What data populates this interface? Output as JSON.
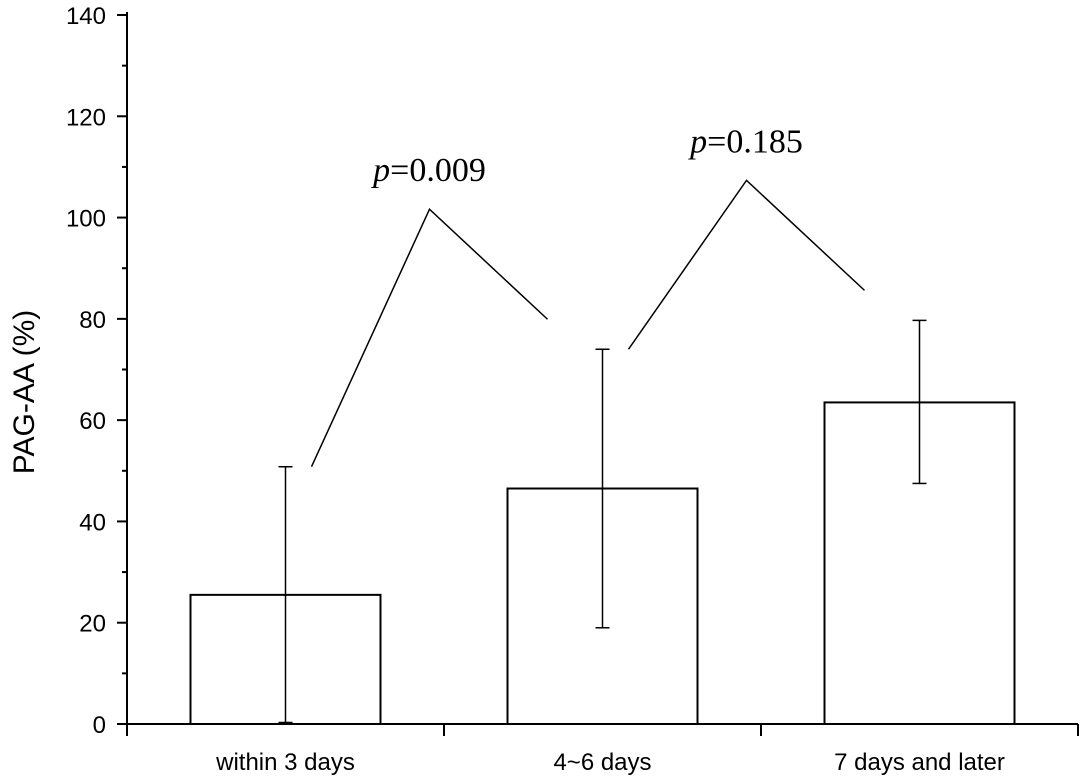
{
  "chart_data": {
    "type": "bar",
    "categories": [
      "within 3 days",
      "4~6 days",
      "7 days and later"
    ],
    "values": [
      25.5,
      46.5,
      63.5
    ],
    "errors": [
      {
        "lower": 0.3,
        "upper": 50.8
      },
      {
        "lower": 19.0,
        "upper": 74.0
      },
      {
        "lower": 47.5,
        "upper": 79.7
      }
    ],
    "xlabel": "",
    "ylabel": "PAG-AA (%)",
    "ylim": [
      0,
      140
    ],
    "yticks": [
      0,
      20,
      40,
      60,
      80,
      100,
      120,
      140
    ],
    "ytick_labels": [
      "0",
      "20",
      "40",
      "60",
      "80",
      "100",
      "120",
      "140"
    ],
    "grid": false,
    "bar_fill": "#ffffff",
    "bar_stroke": "#000000",
    "annotations": [
      {
        "between": [
          0,
          1
        ],
        "p_symbol": "p",
        "p_value": "=0.009"
      },
      {
        "between": [
          1,
          2
        ],
        "p_symbol": "p",
        "p_value": "=0.185"
      }
    ]
  }
}
